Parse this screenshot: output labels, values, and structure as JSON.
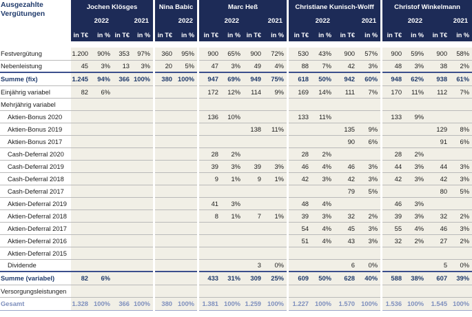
{
  "header": {
    "title_line1": "Ausgezahlte",
    "title_line2": "Vergütungen",
    "persons": [
      {
        "name": "Jochen Klösges",
        "years": [
          "2022",
          "2021"
        ]
      },
      {
        "name": "Nina Babic",
        "years": [
          "2022"
        ]
      },
      {
        "name": "Marc Heß",
        "years": [
          "2022",
          "2021"
        ]
      },
      {
        "name": "Christiane Kunisch-Wolff",
        "years": [
          "2022",
          "2021"
        ]
      },
      {
        "name": "Christof Winkelmann",
        "years": [
          "2022",
          "2021"
        ]
      }
    ],
    "unit_abs": "in T€",
    "unit_pct": "in %"
  },
  "rows": [
    {
      "label": "Festvergütung",
      "indent": false,
      "type": "normal",
      "cells": [
        "1.200",
        "90%",
        "353",
        "97%",
        "360",
        "95%",
        "900",
        "65%",
        "900",
        "72%",
        "530",
        "43%",
        "900",
        "57%",
        "900",
        "59%",
        "900",
        "58%"
      ]
    },
    {
      "label": "Nebenleistung",
      "indent": false,
      "type": "normal",
      "cells": [
        "45",
        "3%",
        "13",
        "3%",
        "20",
        "5%",
        "47",
        "3%",
        "49",
        "4%",
        "88",
        "7%",
        "42",
        "3%",
        "48",
        "3%",
        "38",
        "2%"
      ]
    },
    {
      "label": "Summe (fix)",
      "indent": false,
      "type": "sum",
      "cells": [
        "1.245",
        "94%",
        "366",
        "100%",
        "380",
        "100%",
        "947",
        "69%",
        "949",
        "75%",
        "618",
        "50%",
        "942",
        "60%",
        "948",
        "62%",
        "938",
        "61%"
      ]
    },
    {
      "label": "Einjährig variabel",
      "indent": false,
      "type": "normal",
      "cells": [
        "82",
        "6%",
        "",
        "",
        "",
        "",
        "172",
        "12%",
        "114",
        "9%",
        "169",
        "14%",
        "111",
        "7%",
        "170",
        "11%",
        "112",
        "7%"
      ]
    },
    {
      "label": "Mehrjährig variabel",
      "indent": false,
      "type": "normal",
      "cells": [
        "",
        "",
        "",
        "",
        "",
        "",
        "",
        "",
        "",
        "",
        "",
        "",
        "",
        "",
        "",
        "",
        "",
        ""
      ]
    },
    {
      "label": "Aktien-Bonus 2020",
      "indent": true,
      "type": "normal",
      "cells": [
        "",
        "",
        "",
        "",
        "",
        "",
        "136",
        "10%",
        "",
        "",
        "133",
        "11%",
        "",
        "",
        "133",
        "9%",
        "",
        ""
      ]
    },
    {
      "label": "Aktien-Bonus 2019",
      "indent": true,
      "type": "normal",
      "cells": [
        "",
        "",
        "",
        "",
        "",
        "",
        "",
        "",
        "138",
        "11%",
        "",
        "",
        "135",
        "9%",
        "",
        "",
        "129",
        "8%"
      ]
    },
    {
      "label": "Aktien-Bonus 2017",
      "indent": true,
      "type": "normal",
      "cells": [
        "",
        "",
        "",
        "",
        "",
        "",
        "",
        "",
        "",
        "",
        "",
        "",
        "90",
        "6%",
        "",
        "",
        "91",
        "6%"
      ]
    },
    {
      "label": "Cash-Deferral 2020",
      "indent": true,
      "type": "normal",
      "cells": [
        "",
        "",
        "",
        "",
        "",
        "",
        "28",
        "2%",
        "",
        "",
        "28",
        "2%",
        "",
        "",
        "28",
        "2%",
        "",
        ""
      ]
    },
    {
      "label": "Cash-Deferral 2019",
      "indent": true,
      "type": "normal",
      "cells": [
        "",
        "",
        "",
        "",
        "",
        "",
        "39",
        "3%",
        "39",
        "3%",
        "46",
        "4%",
        "46",
        "3%",
        "44",
        "3%",
        "44",
        "3%"
      ]
    },
    {
      "label": "Cash-Deferral 2018",
      "indent": true,
      "type": "normal",
      "cells": [
        "",
        "",
        "",
        "",
        "",
        "",
        "9",
        "1%",
        "9",
        "1%",
        "42",
        "3%",
        "42",
        "3%",
        "42",
        "3%",
        "42",
        "3%"
      ]
    },
    {
      "label": "Cash-Deferral 2017",
      "indent": true,
      "type": "normal",
      "cells": [
        "",
        "",
        "",
        "",
        "",
        "",
        "",
        "",
        "",
        "",
        "",
        "",
        "79",
        "5%",
        "",
        "",
        "80",
        "5%"
      ]
    },
    {
      "label": "Aktien-Deferral 2019",
      "indent": true,
      "type": "normal",
      "cells": [
        "",
        "",
        "",
        "",
        "",
        "",
        "41",
        "3%",
        "",
        "",
        "48",
        "4%",
        "",
        "",
        "46",
        "3%",
        "",
        ""
      ]
    },
    {
      "label": "Aktien-Deferral 2018",
      "indent": true,
      "type": "normal",
      "cells": [
        "",
        "",
        "",
        "",
        "",
        "",
        "8",
        "1%",
        "7",
        "1%",
        "39",
        "3%",
        "32",
        "2%",
        "39",
        "3%",
        "32",
        "2%"
      ]
    },
    {
      "label": "Aktien-Deferral 2017",
      "indent": true,
      "type": "normal",
      "cells": [
        "",
        "",
        "",
        "",
        "",
        "",
        "",
        "",
        "",
        "",
        "54",
        "4%",
        "45",
        "3%",
        "55",
        "4%",
        "46",
        "3%"
      ]
    },
    {
      "label": "Aktien-Deferral 2016",
      "indent": true,
      "type": "normal",
      "cells": [
        "",
        "",
        "",
        "",
        "",
        "",
        "",
        "",
        "",
        "",
        "51",
        "4%",
        "43",
        "3%",
        "32",
        "2%",
        "27",
        "2%"
      ]
    },
    {
      "label": "Aktien-Deferral 2015",
      "indent": true,
      "type": "normal",
      "cells": [
        "",
        "",
        "",
        "",
        "",
        "",
        "",
        "",
        "",
        "",
        "",
        "",
        "",
        "",
        "",
        "",
        "",
        ""
      ]
    },
    {
      "label": "Dividende",
      "indent": true,
      "type": "normal",
      "cells": [
        "",
        "",
        "",
        "",
        "",
        "",
        "",
        "",
        "3",
        "0%",
        "",
        "",
        "6",
        "0%",
        "",
        "",
        "5",
        "0%"
      ]
    },
    {
      "label": "Summe (variabel)",
      "indent": false,
      "type": "sum",
      "cells": [
        "82",
        "6%",
        "",
        "",
        "",
        "",
        "433",
        "31%",
        "309",
        "25%",
        "609",
        "50%",
        "628",
        "40%",
        "588",
        "38%",
        "607",
        "39%"
      ]
    },
    {
      "label": "Versorgungsleistungen",
      "indent": false,
      "type": "normal",
      "cells": [
        "",
        "",
        "",
        "",
        "",
        "",
        "",
        "",
        "",
        "",
        "",
        "",
        "",
        "",
        "",
        "",
        "",
        ""
      ]
    },
    {
      "label": "Gesamt",
      "indent": false,
      "type": "total",
      "cells": [
        "1.328",
        "100%",
        "366",
        "100%",
        "380",
        "100%",
        "1.381",
        "100%",
        "1.259",
        "100%",
        "1.227",
        "100%",
        "1.570",
        "100%",
        "1.536",
        "100%",
        "1.545",
        "100%"
      ]
    }
  ],
  "colors": {
    "navy": "#1d2b57",
    "shade": "#f1efe6",
    "sum_text": "#1f3a6b",
    "total_text": "#7e8fbd"
  }
}
